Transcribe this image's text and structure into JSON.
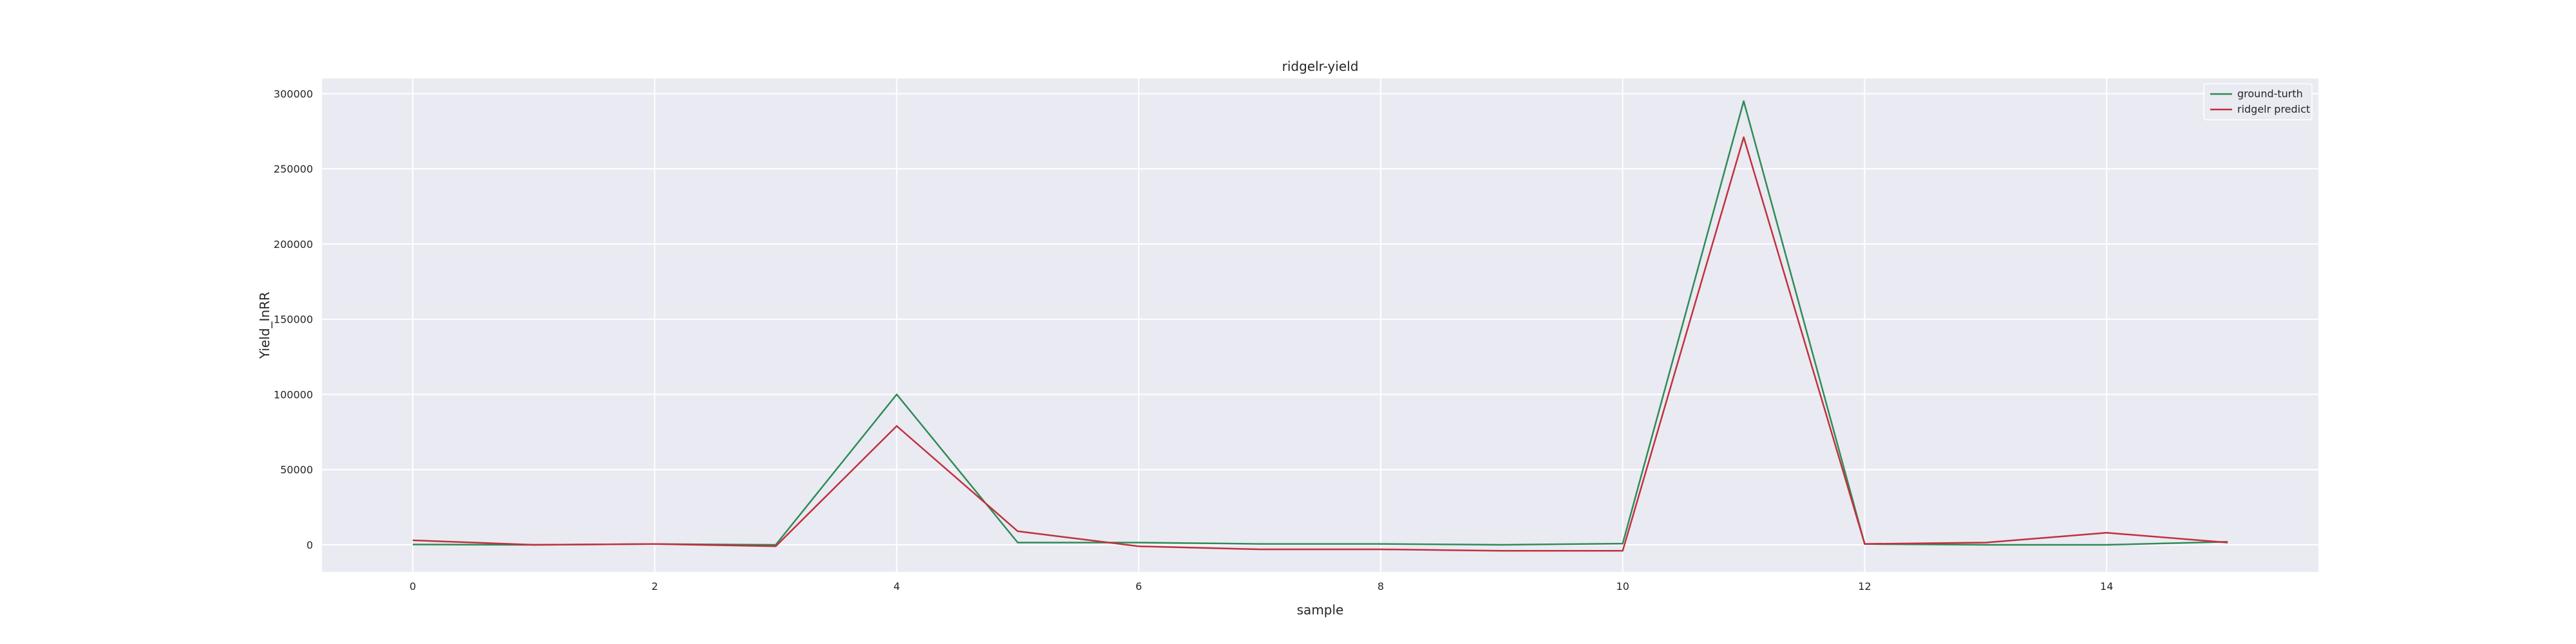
{
  "chart_data": {
    "type": "line",
    "title": "ridgelr-yield",
    "xlabel": "sample",
    "ylabel": "Yield_InRR",
    "x": [
      0,
      1,
      2,
      3,
      4,
      5,
      6,
      7,
      8,
      9,
      10,
      11,
      12,
      13,
      14,
      15
    ],
    "xlim": [
      -0.75,
      15.75
    ],
    "ylim": [
      -18000,
      310000
    ],
    "xticks": [
      0,
      2,
      4,
      6,
      8,
      10,
      12,
      14
    ],
    "yticks": [
      0,
      50000,
      100000,
      150000,
      200000,
      250000,
      300000
    ],
    "grid": true,
    "legend_position": "top-right",
    "background": "#eaeaf2",
    "series": [
      {
        "name": "ground-turth",
        "color": "#2e8b57",
        "values": [
          200,
          0,
          500,
          0,
          100000,
          1500,
          1500,
          600,
          600,
          0,
          800,
          295000,
          500,
          0,
          0,
          2000
        ]
      },
      {
        "name": "ridgelr predict",
        "color": "#c0313d",
        "values": [
          3000,
          0,
          500,
          -1000,
          79000,
          9000,
          -1000,
          -3000,
          -3000,
          -4000,
          -4000,
          271000,
          600,
          1500,
          8000,
          1500
        ]
      }
    ]
  }
}
